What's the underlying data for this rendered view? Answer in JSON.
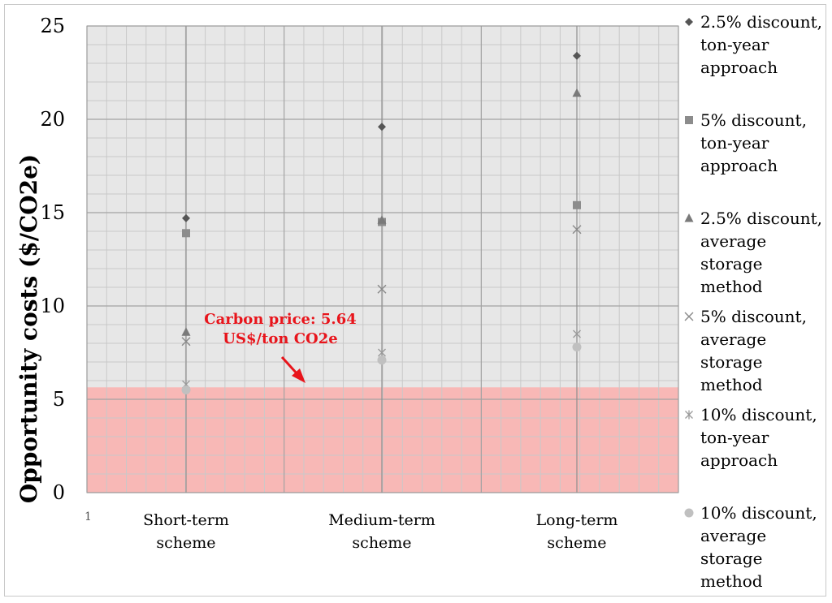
{
  "chart_data": {
    "type": "scatter",
    "title": "",
    "xlabel": "",
    "ylabel": "Opportunity costs ($/CO2e)",
    "ylim": [
      0,
      25
    ],
    "yticks": [
      0,
      5,
      10,
      15,
      20,
      25
    ],
    "grid": true,
    "legend_position": "right",
    "categories": [
      "Short-term scheme",
      "Medium-term scheme",
      "Long-term scheme"
    ],
    "category_lines": [
      [
        "Short-term",
        "scheme"
      ],
      [
        "Medium-term",
        "scheme"
      ],
      [
        "Long-term",
        "scheme"
      ]
    ],
    "stray_axis_text": "1",
    "series": [
      {
        "name": "2.5% discount, ton-year approach",
        "legend_lines": [
          "2.5% discount,",
          "ton-year",
          "approach"
        ],
        "marker": "diamond",
        "color": "#555555",
        "values": [
          14.7,
          19.6,
          23.4
        ]
      },
      {
        "name": "5% discount, ton-year approach",
        "legend_lines": [
          "5% discount,",
          "ton-year",
          "approach"
        ],
        "marker": "square",
        "color": "#8c8c8c",
        "values": [
          13.9,
          14.5,
          15.4
        ]
      },
      {
        "name": "2.5% discount, average storage method",
        "legend_lines": [
          "2.5% discount,",
          "average",
          "storage",
          "method"
        ],
        "marker": "triangle",
        "color": "#7a7a7a",
        "values": [
          8.6,
          14.6,
          21.4
        ]
      },
      {
        "name": "5% discount, average storage method",
        "legend_lines": [
          "5% discount,",
          "average",
          "storage",
          "method"
        ],
        "marker": "x",
        "color": "#8a8a8a",
        "values": [
          8.1,
          10.9,
          14.1
        ]
      },
      {
        "name": "10% discount, ton-year approach",
        "legend_lines": [
          "10% discount,",
          "ton-year",
          "approach"
        ],
        "marker": "star",
        "color": "#9a9a9a",
        "values": [
          5.8,
          7.5,
          8.5
        ]
      },
      {
        "name": "10% discount, average storage method",
        "legend_lines": [
          "10% discount,",
          "average",
          "storage",
          "method"
        ],
        "marker": "circle",
        "color": "#c0c0c0",
        "values": [
          5.5,
          7.1,
          7.8
        ]
      }
    ],
    "shaded_region": {
      "from": 0,
      "to": 5.64,
      "color": "#f9b5b3"
    },
    "annotation": {
      "lines": [
        "Carbon price: 5.64",
        "US$/ton CO2e"
      ],
      "color": "#e8141b"
    }
  }
}
